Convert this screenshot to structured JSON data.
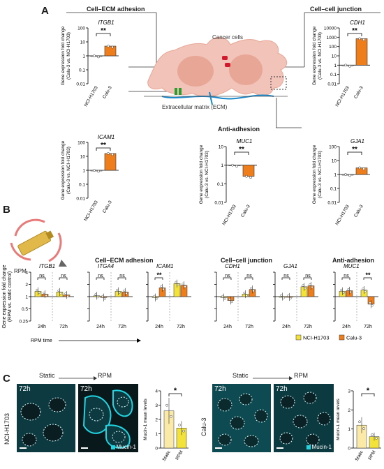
{
  "colors": {
    "orange": "#ee7d1c",
    "yellow": "#f3e23a",
    "cyan": "#22d3e0",
    "cell_pink": "#f2c3b8"
  },
  "panels": {
    "a": "A",
    "b": "B",
    "c": "C"
  },
  "a": {
    "ecm_title": "Cell–ECM adhesion",
    "cc_title": "Cell–cell junction",
    "anti_title": "Anti-adhesion",
    "diagram_labels": {
      "cancer": "Cancer cells",
      "ecm": "Extracellular matrix (ECM)"
    },
    "ylabel_1": "Gene expression fold change",
    "ylabel_2": "(Calu-3 vs. NCI-H1703)",
    "sig": "**",
    "categories": [
      "NCI-H1703",
      "Calu-3"
    ]
  },
  "b": {
    "rpm_label": "RPM",
    "ylabel_1": "Gene expression fold change",
    "ylabel_2": "(RPM vs. static control)",
    "groups": {
      "ecm": "Cell–ECM adhesion",
      "cc": "Cell–cell junction",
      "anti": "Anti-adhesion"
    },
    "x_labels": [
      "24h",
      "72h"
    ],
    "rpm_time": "RPM time",
    "legend": [
      "NCI-H1703",
      "Calu-3"
    ],
    "ns": "ns",
    "sig": "**"
  },
  "c": {
    "static": "Static",
    "rpm": "RPM",
    "time": "72h",
    "stain": "Mucin-1",
    "row_labels": [
      "NCI-H1703",
      "Calu-3"
    ],
    "bar_ylabel": "Mucin-1 mean levels",
    "bar_x": [
      "Static",
      "RPM"
    ],
    "sig": "*"
  },
  "chart_data": [
    {
      "type": "bar",
      "title": "ITGB1",
      "panel": "A",
      "yscale": "log",
      "ylim": [
        0.01,
        100
      ],
      "yticks": [
        "0.01",
        "0.1",
        "1",
        "10",
        "100"
      ],
      "categories": [
        "NCI-H1703",
        "Calu-3"
      ],
      "values": [
        1,
        5
      ]
    },
    {
      "type": "bar",
      "title": "ICAM1",
      "panel": "A",
      "yscale": "log",
      "ylim": [
        0.01,
        100
      ],
      "yticks": [
        "0.01",
        "0.1",
        "1",
        "10",
        "100"
      ],
      "categories": [
        "NCI-H1703",
        "Calu-3"
      ],
      "values": [
        1,
        16
      ]
    },
    {
      "type": "bar",
      "title": "MUC1",
      "panel": "A",
      "yscale": "log",
      "ylim": [
        0.01,
        10
      ],
      "yticks": [
        "0.01",
        "0.1",
        "1",
        "10"
      ],
      "categories": [
        "NCI-H1703",
        "Calu-3"
      ],
      "values": [
        1,
        0.25
      ]
    },
    {
      "type": "bar",
      "title": "CDH1",
      "panel": "A",
      "yscale": "log",
      "ylim": [
        0.01,
        10000
      ],
      "yticks": [
        "0.01",
        "0.1",
        "1",
        "10",
        "100",
        "1000",
        "10000"
      ],
      "categories": [
        "NCI-H1703",
        "Calu-3"
      ],
      "values": [
        1,
        700
      ]
    },
    {
      "type": "bar",
      "title": "GJA1",
      "panel": "A",
      "yscale": "log",
      "ylim": [
        0.01,
        100
      ],
      "yticks": [
        "0.01",
        "0.1",
        "1",
        "10",
        "100"
      ],
      "categories": [
        "NCI-H1703",
        "Calu-3"
      ],
      "values": [
        1,
        3
      ]
    },
    {
      "type": "bar",
      "panel": "B",
      "yscale": "log",
      "ylim": [
        0.25,
        4
      ],
      "yticks": [
        "0.25",
        "0.5",
        "1",
        "2",
        "4"
      ],
      "categories": [
        "24h",
        "72h"
      ],
      "genes": [
        {
          "name": "ITGB1",
          "series": [
            {
              "name": "NCI-H1703",
              "values": [
                1.35,
                1.3
              ]
            },
            {
              "name": "Calu-3",
              "values": [
                1.15,
                1.1
              ]
            }
          ],
          "annot": [
            "ns",
            "ns"
          ]
        },
        {
          "name": "ITGA4",
          "series": [
            {
              "name": "NCI-H1703",
              "values": [
                1.05,
                1.35
              ]
            },
            {
              "name": "Calu-3",
              "values": [
                0.95,
                1.3
              ]
            }
          ],
          "annot": [
            "ns",
            "ns"
          ]
        },
        {
          "name": "ICAM1",
          "series": [
            {
              "name": "NCI-H1703",
              "values": [
                0.95,
                2.1
              ]
            },
            {
              "name": "Calu-3",
              "values": [
                1.65,
                1.9
              ]
            }
          ],
          "annot": [
            "**",
            ""
          ]
        },
        {
          "name": "CDH1",
          "series": [
            {
              "name": "NCI-H1703",
              "values": [
                0.95,
                1.15
              ]
            },
            {
              "name": "Calu-3",
              "values": [
                0.8,
                1.5
              ]
            }
          ],
          "annot": [
            "ns",
            "ns"
          ]
        },
        {
          "name": "GJA1",
          "series": [
            {
              "name": "NCI-H1703",
              "values": [
                1.0,
                1.75
              ]
            },
            {
              "name": "Calu-3",
              "values": [
                0.98,
                1.85
              ]
            }
          ],
          "annot": [
            "ns",
            "ns"
          ]
        },
        {
          "name": "MUC1",
          "series": [
            {
              "name": "NCI-H1703",
              "values": [
                1.35,
                1.45
              ]
            },
            {
              "name": "Calu-3",
              "values": [
                1.4,
                0.65
              ]
            }
          ],
          "annot": [
            "ns",
            "**"
          ]
        }
      ]
    },
    {
      "type": "bar",
      "panel": "C",
      "title": "NCI-H1703",
      "ylabel": "Mucin-1 mean levels",
      "ylim": [
        0,
        4
      ],
      "yticks": [
        "0",
        "1",
        "2",
        "3",
        "4"
      ],
      "categories": [
        "Static",
        "RPM"
      ],
      "values": [
        2.6,
        1.4
      ]
    },
    {
      "type": "bar",
      "panel": "C",
      "title": "Calu-3",
      "ylabel": "Mucin-1 mean levels",
      "ylim": [
        0,
        3
      ],
      "yticks": [
        "0",
        "1",
        "2",
        "3"
      ],
      "categories": [
        "Static",
        "RPM"
      ],
      "values": [
        1.2,
        0.6
      ]
    }
  ]
}
